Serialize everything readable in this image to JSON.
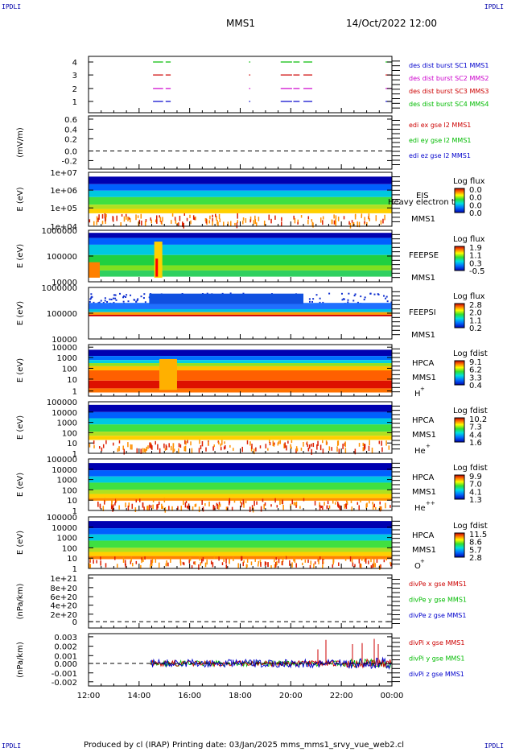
{
  "corners": {
    "tl": "IPDLI",
    "tr": "IPDLI",
    "bl": "IPDLI",
    "br": "IPDLI"
  },
  "header": {
    "title": "MMS1",
    "datetime": "14/Oct/2022 12:00"
  },
  "footer": {
    "text": "Produced by cl (IRAP)   Printing date: 03/Jan/2025   mms_mms1_srvy_vue_web2.cl"
  },
  "colors": {
    "blue": "#0000cc",
    "green": "#00bb00",
    "magenta": "#cc00cc",
    "red": "#cc0000",
    "black": "#000000"
  },
  "chart_data": {
    "type": "heatmap",
    "x_ticks": [
      "12:00",
      "14:00",
      "16:00",
      "18:00",
      "20:00",
      "22:00",
      "00:00"
    ],
    "x_range_hours": [
      12,
      24
    ],
    "panels": [
      {
        "id": "burst",
        "type": "line",
        "y_ticks": [
          "4",
          "3",
          "2",
          "1"
        ],
        "ylim": [
          0.5,
          4.5
        ],
        "legend": [
          {
            "text": "des dist burst SC1 MMS1",
            "color": "#0000cc"
          },
          {
            "text": "des dist burst SC2 MMS2",
            "color": "#cc00cc"
          },
          {
            "text": "des dist burst SC3 MMS3",
            "color": "#cc0000"
          },
          {
            "text": "des dist burst SC4 MMS4",
            "color": "#00bb00"
          }
        ],
        "burst_intervals_hours": [
          [
            14.55,
            14.95
          ],
          [
            15.05,
            15.25
          ],
          [
            18.35,
            18.4
          ],
          [
            19.6,
            20.05
          ],
          [
            20.1,
            20.35
          ],
          [
            20.5,
            20.85
          ],
          [
            23.75,
            24
          ]
        ]
      },
      {
        "id": "edp",
        "type": "line",
        "ylabel": "(mV/m)",
        "y_ticks": [
          "0.6",
          "0.4",
          "0.2",
          "0.0",
          "-0.2"
        ],
        "ylim": [
          -0.2,
          0.7
        ],
        "legend": [
          {
            "text": "edi ex gse l2 MMS1",
            "color": "#cc0000"
          },
          {
            "text": "edi ey gse l2 MMS1",
            "color": "#00bb00"
          },
          {
            "text": "edi ez gse l2 MMS1",
            "color": "#0000cc"
          }
        ]
      },
      {
        "id": "eis",
        "type": "heatmap",
        "ylabel": "E (eV)",
        "y_ticks": [
          "1e+07",
          "1e+06",
          "1e+05",
          "1e+04"
        ],
        "ylim": [
          10000,
          10000000
        ],
        "log": true,
        "labels": [
          "EIS",
          "Heavy electron tof",
          "MMS1"
        ],
        "colorbar": {
          "title": "Log flux",
          "ticks": [
            "0.0",
            "0.0",
            "0.0",
            "0.0"
          ]
        }
      },
      {
        "id": "feepse",
        "type": "heatmap",
        "ylabel": "E (eV)",
        "y_ticks": [
          "1000000",
          "100000",
          "10000"
        ],
        "ylim": [
          10000,
          1000000
        ],
        "log": true,
        "labels": [
          "FEEPSE",
          "MMS1"
        ],
        "colorbar": {
          "title": "Log flux",
          "ticks": [
            "1.9",
            "1.1",
            "0.3",
            "-0.5"
          ]
        }
      },
      {
        "id": "feepsi",
        "type": "heatmap",
        "ylabel": "E (eV)",
        "y_ticks": [
          "1000000",
          "100000",
          "10000"
        ],
        "ylim": [
          10000,
          1000000
        ],
        "log": true,
        "labels": [
          "FEEPSI",
          "MMS1"
        ],
        "colorbar": {
          "title": "Log flux",
          "ticks": [
            "2.8",
            "2.0",
            "1.1",
            "0.2"
          ]
        }
      },
      {
        "id": "hpca_h",
        "type": "heatmap",
        "ylabel": "E (eV)",
        "y_ticks": [
          "10000",
          "1000",
          "100",
          "10",
          "1"
        ],
        "ylim": [
          1,
          30000
        ],
        "log": true,
        "labels": [
          "HPCA",
          "MMS1"
        ],
        "species": "H",
        "species_sup": "+",
        "colorbar": {
          "title": "Log fdist",
          "ticks": [
            "9.1",
            "6.2",
            "3.3",
            "0.4"
          ]
        }
      },
      {
        "id": "hpca_he",
        "type": "heatmap",
        "ylabel": "E (eV)",
        "y_ticks": [
          "100000",
          "10000",
          "1000",
          "100",
          "10",
          "1"
        ],
        "ylim": [
          1,
          100000
        ],
        "log": true,
        "labels": [
          "HPCA",
          "MMS1"
        ],
        "species": "He",
        "species_sup": "+",
        "colorbar": {
          "title": "Log fdist",
          "ticks": [
            "10.2",
            "7.3",
            "4.4",
            "1.6"
          ]
        }
      },
      {
        "id": "hpca_hepp",
        "type": "heatmap",
        "ylabel": "E (eV)",
        "y_ticks": [
          "100000",
          "10000",
          "1000",
          "100",
          "10",
          "1"
        ],
        "ylim": [
          1,
          100000
        ],
        "log": true,
        "labels": [
          "HPCA",
          "MMS1"
        ],
        "species": "He",
        "species_sup": "++",
        "colorbar": {
          "title": "Log fdist",
          "ticks": [
            "9.9",
            "7.0",
            "4.1",
            "1.3"
          ]
        }
      },
      {
        "id": "hpca_o",
        "type": "heatmap",
        "ylabel": "E (eV)",
        "y_ticks": [
          "100000",
          "10000",
          "1000",
          "100",
          "10",
          "1"
        ],
        "ylim": [
          1,
          100000
        ],
        "log": true,
        "labels": [
          "HPCA",
          "MMS1"
        ],
        "species": "O",
        "species_sup": "+",
        "colorbar": {
          "title": "Log fdist",
          "ticks": [
            "11.5",
            "8.6",
            "5.7",
            "2.8"
          ]
        }
      },
      {
        "id": "divpe",
        "type": "line",
        "ylabel": "(nPa/km)",
        "y_ticks": [
          "1e+21",
          "8e+20",
          "6e+20",
          "4e+20",
          "2e+20",
          "0"
        ],
        "ylim": [
          -1e+20,
          1.1e+21
        ],
        "legend": [
          {
            "text": "divPe x gse MMS1",
            "color": "#cc0000"
          },
          {
            "text": "divPe y gse MMS1",
            "color": "#00bb00"
          },
          {
            "text": "divPe z gse MMS1",
            "color": "#0000cc"
          }
        ]
      },
      {
        "id": "divpi",
        "type": "line",
        "ylabel": "(nPa/km)",
        "y_ticks": [
          "0.003",
          "0.002",
          "0.001",
          "0.000",
          "-0.001",
          "-0.002"
        ],
        "ylim": [
          -0.0022,
          0.0032
        ],
        "legend": [
          {
            "text": "divPi x gse MMS1",
            "color": "#cc0000"
          },
          {
            "text": "divPi y gse MMS1",
            "color": "#00bb00"
          },
          {
            "text": "divPi z gse MMS1",
            "color": "#0000cc"
          }
        ],
        "data_start_hours": 14.45
      }
    ]
  }
}
